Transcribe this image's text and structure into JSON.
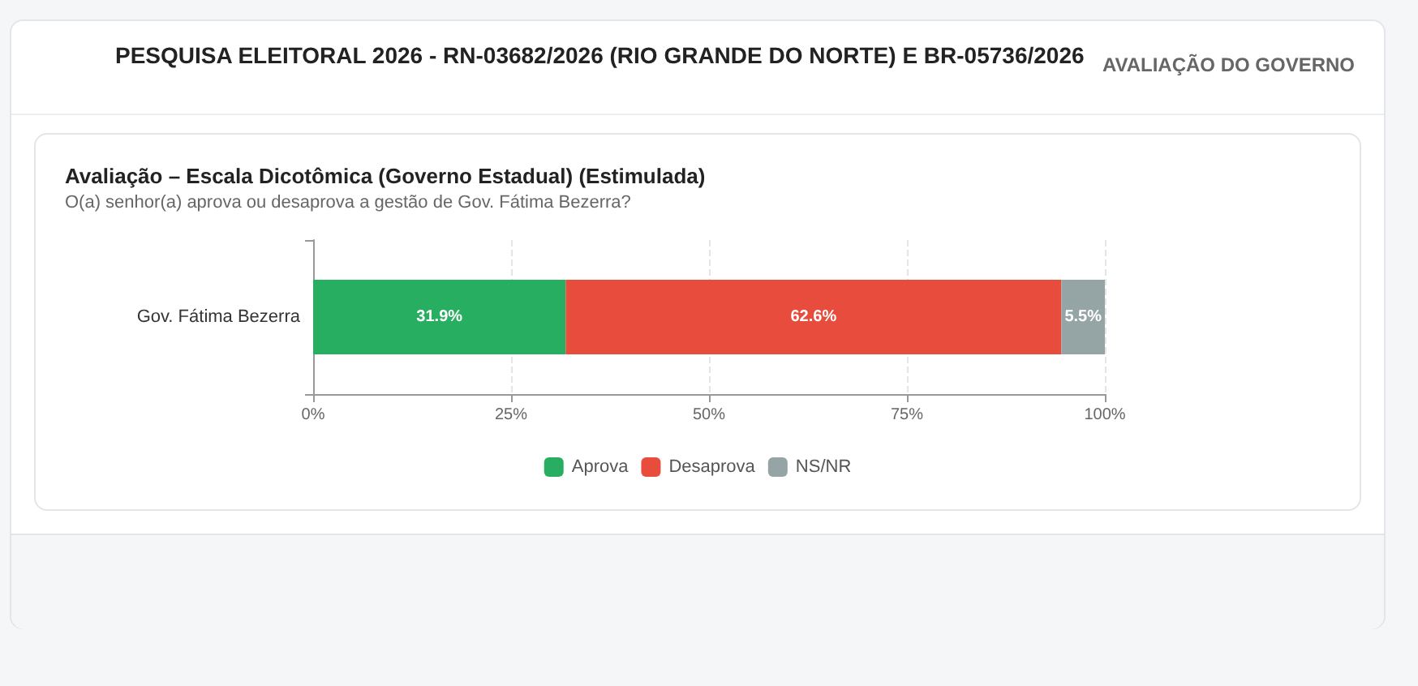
{
  "chart_data": {
    "type": "bar",
    "orientation": "horizontal",
    "stacked": true,
    "title": "Avaliação – Escala Dicotômica (Governo Estadual) (Estimulada)",
    "subtitle": "O(a) senhor(a) aprova ou desaprova a gestão de Gov. Fátima Bezerra?",
    "annotations": [
      "PESQUISA ELEITORAL 2026 - RN-03682/2026 (RIO GRANDE DO NORTE) E BR-05736/2026",
      "AVALIAÇÃO DO GOVERNO"
    ],
    "categories": [
      "Gov. Fátima Bezerra"
    ],
    "series": [
      {
        "name": "Aprova",
        "color": "#27ae60",
        "values": [
          31.9
        ],
        "value_labels": [
          "31.9%"
        ]
      },
      {
        "name": "Desaprova",
        "color": "#e74c3c",
        "values": [
          62.6
        ],
        "value_labels": [
          "62.6%"
        ]
      },
      {
        "name": "NS/NR",
        "color": "#95a5a6",
        "values": [
          5.5
        ],
        "value_labels": [
          "5.5%"
        ]
      }
    ],
    "xlim": [
      0,
      100
    ],
    "xticks": [
      {
        "value": 0,
        "label": "0%"
      },
      {
        "value": 25,
        "label": "25%"
      },
      {
        "value": 50,
        "label": "50%"
      },
      {
        "value": 75,
        "label": "75%"
      },
      {
        "value": 100,
        "label": "100%"
      }
    ],
    "grid": "x",
    "legend": "bottom"
  }
}
